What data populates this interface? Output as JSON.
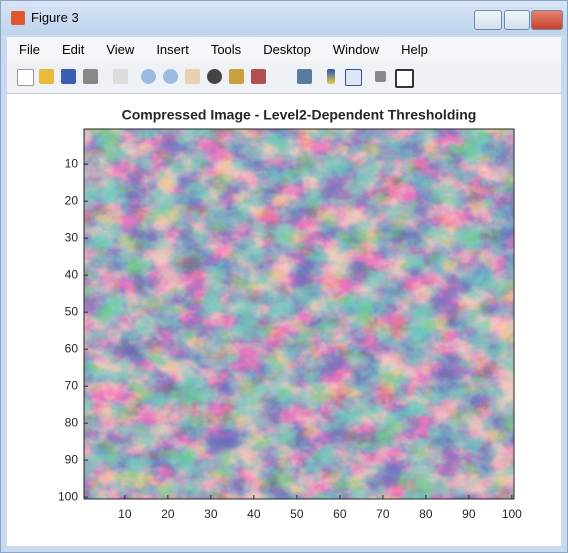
{
  "window": {
    "title": "Figure 3",
    "menu": [
      "File",
      "Edit",
      "View",
      "Insert",
      "Tools",
      "Desktop",
      "Window",
      "Help"
    ]
  },
  "chart_data": {
    "type": "image",
    "title": "Compressed Image - Level2-Dependent Thresholding",
    "xlim": [
      0.5,
      100.5
    ],
    "ylim": [
      0.5,
      100.5
    ],
    "ydir": "reverse",
    "xticks": [
      10,
      20,
      30,
      40,
      50,
      60,
      70,
      80,
      90,
      100
    ],
    "yticks": [
      10,
      20,
      30,
      40,
      50,
      60,
      70,
      80,
      90,
      100
    ]
  }
}
